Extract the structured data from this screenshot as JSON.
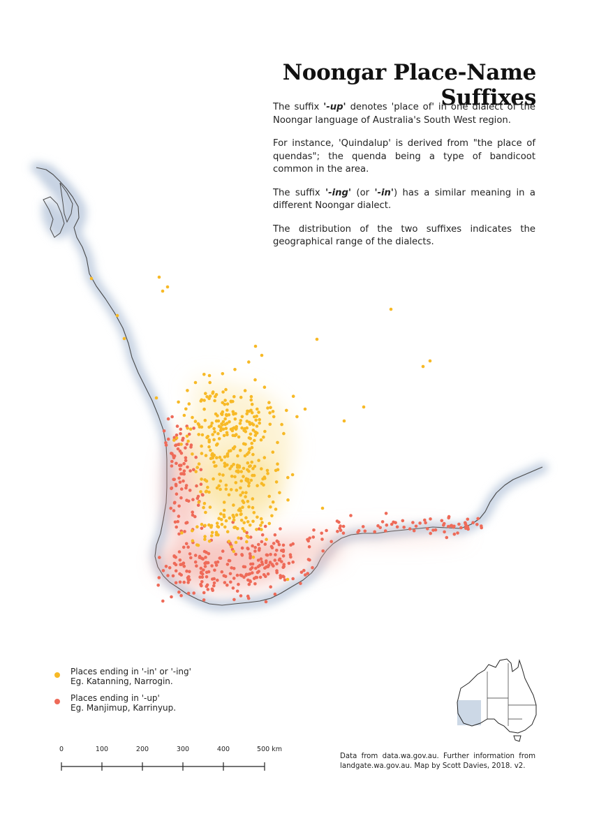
{
  "title": "Noongar Place-Name Suffixes",
  "intro": {
    "p1": {
      "pre": "The suffix ",
      "em": "'-up'",
      "post": " denotes 'place of' in one dialect of the Noongar language of Australia's South West region."
    },
    "p2": "For instance, 'Quindalup' is derived from \"the place of quendas\"; the quenda being a type of bandicoot common in the area.",
    "p3": {
      "pre": "The suffix ",
      "em1": "'-ing'",
      "mid": " (or ",
      "em2": "'-in'",
      "post": ") has a similar meaning in a different Noongar dialect."
    },
    "p4": "The distribution of the two suffixes indicates the geographical range of the dialects."
  },
  "legend": {
    "ing": {
      "label": "Places ending in '-in' or '-ing'",
      "example": "Eg. Katanning, Narrogin.",
      "color": "#f7b926"
    },
    "up": {
      "label": "Places ending in '-up'",
      "example": "Eg. Manjimup, Karrinyup.",
      "color": "#ee6a58"
    }
  },
  "scale_bar": {
    "ticks": [
      "0",
      "100",
      "200",
      "300",
      "400",
      "500 km"
    ]
  },
  "attribution": "Data from data.wa.gov.au. Further information from landgate.wa.gov.au. Map by Scott Davies, 2018. v2.",
  "colors": {
    "ing": "#f7b926",
    "up": "#ee6a58",
    "coast_shadow": "#c7d3e3",
    "inset_highlight": "#ccd8e6"
  },
  "inset": {
    "name": "australia-locator-inset",
    "highlight": "south-west Western Australia"
  }
}
